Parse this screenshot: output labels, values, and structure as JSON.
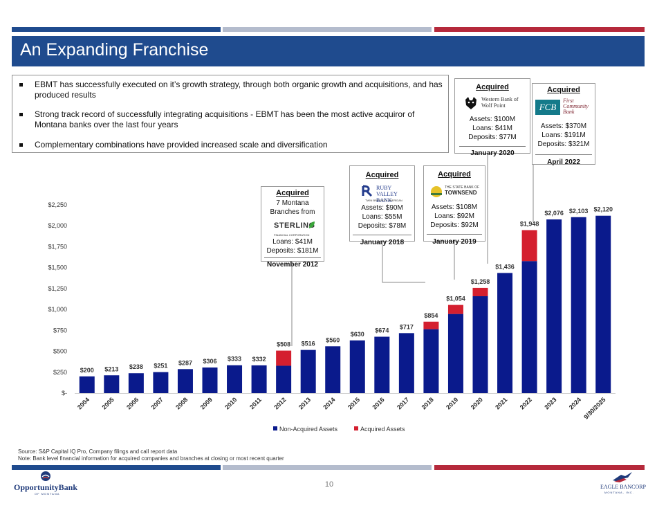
{
  "title": "An Expanding Franchise",
  "bullets": [
    "EBMT has successfully executed on it’s growth strategy, through both organic growth and acquisitions, and has produced results",
    "Strong track record of successfully integrating acquisitions - EBMT has been the most active acquiror of Montana banks over the last four years",
    "Complementary combinations have provided increased scale and diversification"
  ],
  "acquisitions": {
    "sterling": {
      "heading": "Acquired",
      "subtitle": "7 Montana Branches from",
      "logo": "STERLING",
      "logo_sub": "FINANCIAL CORPORATION",
      "lines": [
        "Loans: $41M",
        "Deposits: $181M"
      ],
      "date": "November 2012"
    },
    "ruby": {
      "heading": "Acquired",
      "logo": "RUBY VALLEY BANK",
      "logo_sub": "TWIN BRIDGES • SHERIDAN",
      "lines": [
        "Assets: $90M",
        "Loans: $55M",
        "Deposits: $78M"
      ],
      "date": "January 2018"
    },
    "townsend": {
      "heading": "Acquired",
      "logo_top": "THE STATE BANK OF",
      "logo": "TOWNSEND",
      "lines": [
        "Assets: $108M",
        "Loans: $92M",
        "Deposits: $92M"
      ],
      "date": "January 2019"
    },
    "wolfpoint": {
      "heading": "Acquired",
      "logo": "Western Bank of Wolf Point",
      "lines": [
        "Assets: $100M",
        "Loans: $41M",
        "Deposits: $77M"
      ],
      "date": "January 2020"
    },
    "fcb": {
      "heading": "Acquired",
      "logo_mark": "FCB",
      "logo": "First Community Bank",
      "lines": [
        "Assets: $370M",
        "Loans: $191M",
        "Deposits: $321M"
      ],
      "date": "April 2022"
    }
  },
  "chart_data": {
    "type": "bar",
    "stacked": true,
    "title": "",
    "xlabel": "",
    "ylabel": "",
    "ylim": [
      0,
      2250
    ],
    "yticks": [
      0,
      250,
      500,
      750,
      1000,
      1250,
      1500,
      1750,
      2000,
      2250
    ],
    "ytick_labels": [
      "$-",
      "$250",
      "$500",
      "$750",
      "$1,000",
      "$1,250",
      "$1,500",
      "$1,750",
      "$2,000",
      "$2,250"
    ],
    "categories": [
      "2004",
      "2005",
      "2006",
      "2007",
      "2008",
      "2009",
      "2010",
      "2011",
      "2012",
      "2013",
      "2014",
      "2015",
      "2016",
      "2017",
      "2018",
      "2019",
      "2020",
      "2021",
      "2022",
      "2023",
      "2024",
      "9/30/2025"
    ],
    "series": [
      {
        "name": "Non-Acquired Assets",
        "color": "#0a1a8c",
        "values": [
          200,
          213,
          238,
          251,
          287,
          306,
          333,
          332,
          327,
          516,
          560,
          630,
          674,
          717,
          764,
          946,
          1158,
          1436,
          1578,
          2076,
          2103,
          2120
        ]
      },
      {
        "name": "Acquired Assets",
        "color": "#d41f2f",
        "values": [
          0,
          0,
          0,
          0,
          0,
          0,
          0,
          0,
          181,
          0,
          0,
          0,
          0,
          0,
          90,
          108,
          100,
          0,
          370,
          0,
          0,
          0
        ]
      }
    ],
    "total_labels": [
      "$200",
      "$213",
      "$238",
      "$251",
      "$287",
      "$306",
      "$333",
      "$332",
      "$508",
      "$516",
      "$560",
      "$630",
      "$674",
      "$717",
      "$854",
      "$1,054",
      "$1,258",
      "$1,436",
      "$1,948",
      "$2,076",
      "$2,103",
      "$2,120"
    ],
    "legend_position": "bottom"
  },
  "footnotes": [
    "Source: S&P Capital IQ Pro, Company filings and call report data",
    "Note: Bank level financial information for acquired companies and branches at closing or most recent quarter"
  ],
  "page_number": "10",
  "footer": {
    "left_logo": "OpportunityBank",
    "left_logo_sub": "OF MONTANA",
    "right_logo": "EAGLE BANCORP",
    "right_logo_sub": "MONTANA, INC."
  },
  "colors": {
    "navy": "#1f4b8e",
    "gray": "#a8afc4",
    "red": "#b5293b"
  }
}
